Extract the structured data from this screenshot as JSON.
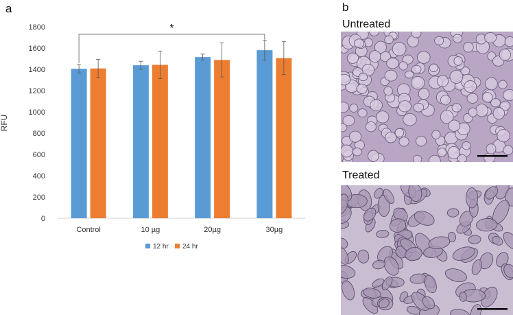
{
  "panels": {
    "a": "a",
    "b": "b"
  },
  "chart_data": {
    "type": "bar",
    "ylabel": "RFU",
    "xlabel": "",
    "ylim": [
      0,
      1800
    ],
    "yticks": [
      0,
      200,
      400,
      600,
      800,
      1000,
      1200,
      1400,
      1600,
      1800
    ],
    "categories": [
      "Control",
      "10 µg",
      "20µg",
      "30µg"
    ],
    "series": [
      {
        "name": "12 hr",
        "color": "#5b9bd5",
        "values": [
          1405,
          1438,
          1515,
          1580
        ],
        "errors": [
          40,
          38,
          28,
          95
        ]
      },
      {
        "name": "24 hr",
        "color": "#ed7d31",
        "values": [
          1408,
          1442,
          1488,
          1505
        ],
        "errors": [
          85,
          130,
          160,
          155
        ]
      }
    ],
    "legend_position": "bottom-center",
    "grid": false,
    "annotations": [
      {
        "text": "*",
        "from_category": "Control",
        "to_category": "30µg"
      }
    ]
  },
  "images": {
    "untreated": {
      "title": "Untreated",
      "bg_color": "#b8a6c4",
      "cell_color": "#d9cde2",
      "edge_color": "#6f6180"
    },
    "treated": {
      "title": "Treated",
      "bg_color": "#c9bdd2",
      "cell_color": "#a898b6",
      "edge_color": "#5c4e6c"
    }
  }
}
